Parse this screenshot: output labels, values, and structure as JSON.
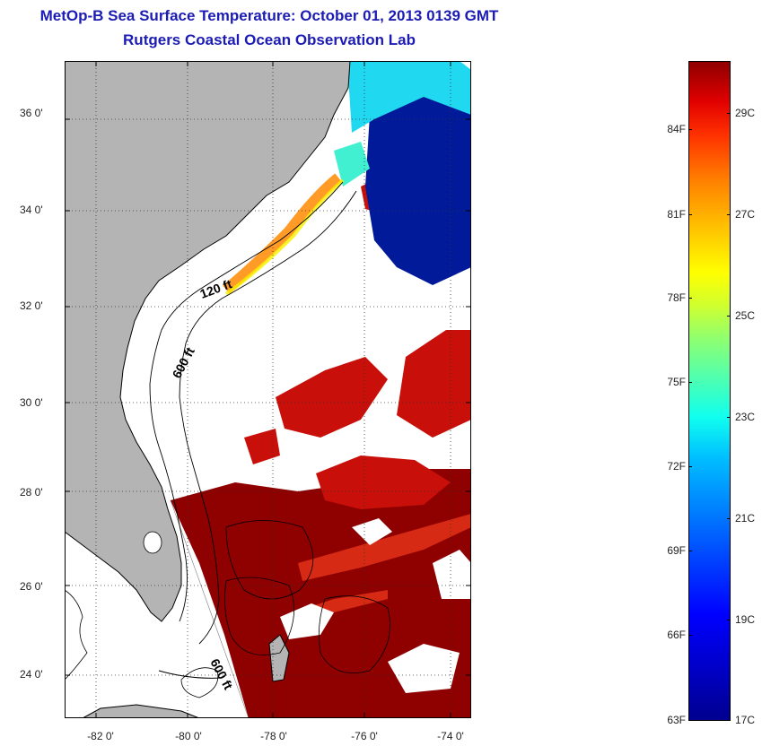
{
  "title": {
    "line1": "MetOp-B Sea Surface Temperature:  October 01, 2013 0139 GMT",
    "line2": "Rutgers Coastal Ocean Observation Lab"
  },
  "map": {
    "lat_ticks": [
      "36 0'",
      "34 0'",
      "32 0'",
      "30 0'",
      "28 0'",
      "26 0'",
      "24 0'"
    ],
    "lon_ticks": [
      "-82 0'",
      "-80 0'",
      "-78 0'",
      "-76 0'",
      "-74 0'"
    ],
    "contour_labels": {
      "c120": "120 ft",
      "c600_north": "600 ft",
      "c600_south": "600 ft"
    },
    "colors": {
      "land": "#b4b4b4",
      "no_data": "#ffffff",
      "warm": "#8f0000",
      "hot": "#dd1a0a",
      "cold": "#001a9a"
    }
  },
  "colorbar": {
    "fahrenheit": [
      "84F",
      "81F",
      "78F",
      "75F",
      "72F",
      "69F",
      "66F",
      "63F"
    ],
    "celsius": [
      "29C",
      "27C",
      "25C",
      "23C",
      "21C",
      "19C",
      "17C"
    ]
  }
}
